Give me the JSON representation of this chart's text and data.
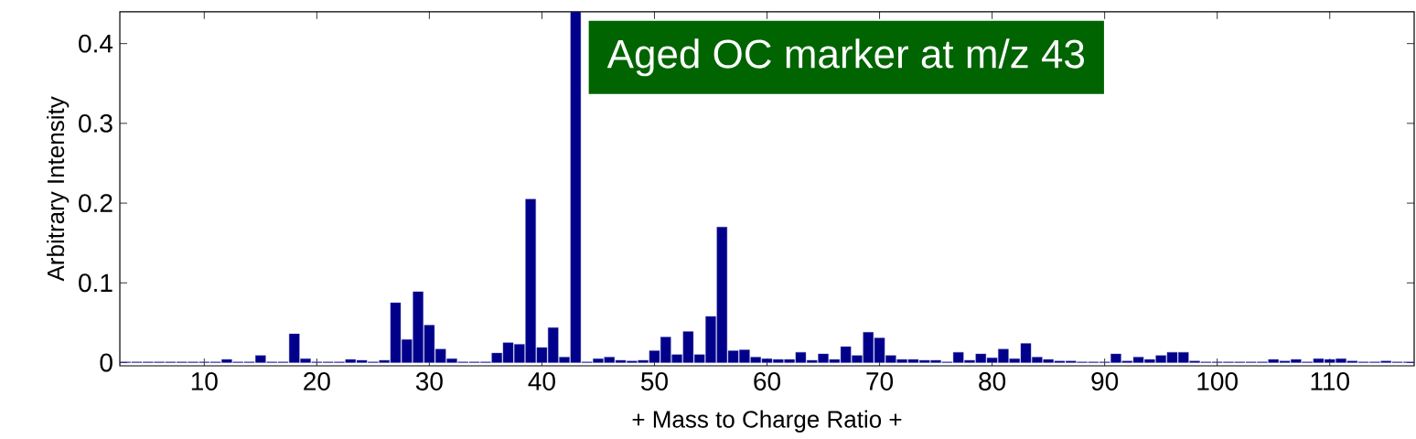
{
  "chart_data": {
    "type": "bar",
    "xlabel": "+ Mass to Charge Ratio +",
    "ylabel": "Arbitrary Intensity",
    "annotations": [
      "Aged OC marker at m/z 43"
    ],
    "x": [
      3,
      4,
      5,
      6,
      7,
      8,
      9,
      10,
      11,
      12,
      13,
      14,
      15,
      16,
      17,
      18,
      19,
      20,
      21,
      22,
      23,
      24,
      25,
      26,
      27,
      28,
      29,
      30,
      31,
      32,
      33,
      34,
      35,
      36,
      37,
      38,
      39,
      40,
      41,
      42,
      43,
      44,
      45,
      46,
      47,
      48,
      49,
      50,
      51,
      52,
      53,
      54,
      55,
      56,
      57,
      58,
      59,
      60,
      61,
      62,
      63,
      64,
      65,
      66,
      67,
      68,
      69,
      70,
      71,
      72,
      73,
      74,
      75,
      76,
      77,
      78,
      79,
      80,
      81,
      82,
      83,
      84,
      85,
      86,
      87,
      88,
      89,
      90,
      91,
      92,
      93,
      94,
      95,
      96,
      97,
      98,
      99,
      100,
      101,
      102,
      103,
      104,
      105,
      106,
      107,
      108,
      109,
      110,
      111,
      112,
      113,
      114,
      115,
      116,
      117
    ],
    "values": [
      0.001,
      0.001,
      0.001,
      0.001,
      0.001,
      0.001,
      0.001,
      0.001,
      0.001,
      0.004,
      0.001,
      0.001,
      0.009,
      0.001,
      0.001,
      0.036,
      0.005,
      0.001,
      0.001,
      0.001,
      0.004,
      0.003,
      0.001,
      0.003,
      0.075,
      0.029,
      0.089,
      0.047,
      0.017,
      0.005,
      0.001,
      0.001,
      0.001,
      0.012,
      0.025,
      0.023,
      0.205,
      0.019,
      0.044,
      0.007,
      0.44,
      0.001,
      0.005,
      0.007,
      0.003,
      0.002,
      0.003,
      0.015,
      0.032,
      0.01,
      0.039,
      0.01,
      0.058,
      0.17,
      0.015,
      0.016,
      0.007,
      0.005,
      0.004,
      0.004,
      0.013,
      0.003,
      0.011,
      0.004,
      0.02,
      0.009,
      0.038,
      0.031,
      0.009,
      0.004,
      0.004,
      0.003,
      0.003,
      0.001,
      0.013,
      0.003,
      0.011,
      0.006,
      0.017,
      0.005,
      0.024,
      0.007,
      0.004,
      0.002,
      0.002,
      0.001,
      0.001,
      0.001,
      0.011,
      0.002,
      0.007,
      0.004,
      0.009,
      0.013,
      0.013,
      0.002,
      0.001,
      0.001,
      0.001,
      0.001,
      0.001,
      0.001,
      0.004,
      0.002,
      0.004,
      0.001,
      0.005,
      0.004,
      0.005,
      0.002,
      0.001,
      0.001,
      0.002,
      0.001,
      0.001
    ],
    "color": "#00008b",
    "xlim": [
      2.5,
      117.5
    ],
    "ylim": [
      -0.004,
      0.44
    ],
    "xticks": [
      10,
      20,
      30,
      40,
      50,
      60,
      70,
      80,
      90,
      100,
      110
    ],
    "yticks": [
      0,
      0.1,
      0.2,
      0.3,
      0.4
    ],
    "grid": false
  }
}
